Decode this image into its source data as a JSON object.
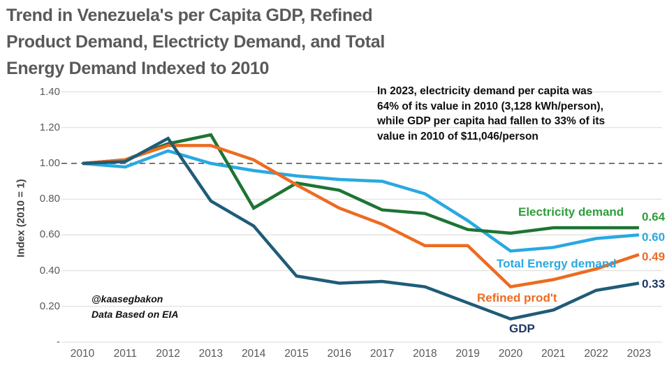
{
  "title": {
    "lines": [
      "Trend in Venezuela's per Capita GDP, Refined",
      "Product Demand,  Electricty Demand, and Total",
      "Energy Demand Indexed to 2010"
    ]
  },
  "annotation": {
    "lines": [
      "In 2023, electricity demand per capita was",
      "64% of its value in 2010 (3,128 kWh/person),",
      "while GDP per capita had fallen to 33% of its",
      "value in 2010 of $11,046/person"
    ]
  },
  "attribution": {
    "handle": "@kaasegbakon",
    "source": "Data Based on EIA"
  },
  "colors": {
    "title_gray": "#595959",
    "gridline": "#d9d9d9",
    "baseline_dash": "#757575",
    "electricity_line": "#1e7433",
    "electricity_label": "#2e9e3a",
    "total_energy": "#29a9e1",
    "refined": "#ed6b21",
    "gdp_line": "#1f5c78",
    "gdp_label": "#1f3864"
  },
  "chart_data": {
    "type": "line",
    "title": "Trend in Venezuela's per Capita GDP, Refined Product Demand, Electricty Demand, and Total Energy Demand Indexed to 2010",
    "xlabel": "",
    "ylabel": "Index (2010 = 1)",
    "x": [
      2010,
      2011,
      2012,
      2013,
      2014,
      2015,
      2016,
      2017,
      2018,
      2019,
      2020,
      2021,
      2022,
      2023
    ],
    "x_tick_labels": [
      "2010",
      "2011",
      "2012",
      "2013",
      "2014",
      "2015",
      "2016",
      "2017",
      "2018",
      "2019",
      "2020",
      "2021",
      "2022",
      "2023"
    ],
    "ylim": [
      0,
      1.4
    ],
    "y_ticks": [
      {
        "label": "1.40",
        "value": 1.4
      },
      {
        "label": "1.20",
        "value": 1.2
      },
      {
        "label": "1.00",
        "value": 1.0
      },
      {
        "label": "0.80",
        "value": 0.8
      },
      {
        "label": "0.60",
        "value": 0.6
      },
      {
        "label": "0.40",
        "value": 0.4
      },
      {
        "label": "0.20",
        "value": 0.2
      },
      {
        "label": "-",
        "value": 0.0
      }
    ],
    "baseline": 1.0,
    "grid": true,
    "legend": "inline-labels-at-line-ends",
    "series": [
      {
        "name": "Total Energy demand",
        "color": "#29a9e1",
        "label_color": "#29a9e1",
        "end_label": "0.60",
        "values": [
          1.0,
          0.98,
          1.07,
          1.0,
          0.96,
          0.93,
          0.91,
          0.9,
          0.83,
          0.68,
          0.51,
          0.53,
          0.58,
          0.6
        ]
      },
      {
        "name": "Electricity demand",
        "color": "#1e7433",
        "label_color": "#2e9e3a",
        "end_label": "0.64",
        "values": [
          1.0,
          1.02,
          1.11,
          1.16,
          0.75,
          0.89,
          0.85,
          0.74,
          0.72,
          0.63,
          0.61,
          0.64,
          0.64,
          0.64
        ]
      },
      {
        "name": "Refined prod't",
        "color": "#ed6b21",
        "label_color": "#ed6b21",
        "end_label": "0.49",
        "values": [
          1.0,
          1.02,
          1.1,
          1.1,
          1.02,
          0.88,
          0.75,
          0.66,
          0.54,
          0.54,
          0.31,
          0.35,
          0.41,
          0.49
        ]
      },
      {
        "name": "GDP",
        "color": "#1f5c78",
        "label_color": "#1f3864",
        "end_label": "0.33",
        "values": [
          1.0,
          1.01,
          1.14,
          0.79,
          0.65,
          0.37,
          0.33,
          0.34,
          0.31,
          0.22,
          0.13,
          0.18,
          0.29,
          0.33
        ]
      }
    ]
  }
}
